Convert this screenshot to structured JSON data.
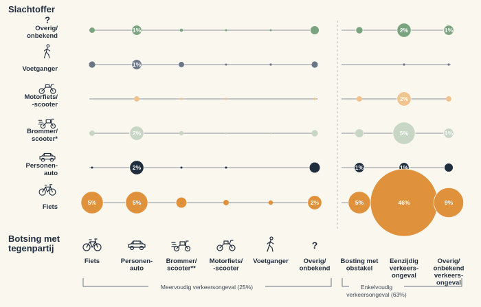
{
  "headings": {
    "victim": "Slachtoffer",
    "opponent_line1": "Botsing met",
    "opponent_line2": "tegenpartij"
  },
  "rows": [
    {
      "lines": [
        "Overig/",
        "onbekend"
      ],
      "icon": "question-mark-icon"
    },
    {
      "lines": [
        "Voetganger"
      ],
      "icon": "pedestrian-icon"
    },
    {
      "lines": [
        "Motorfiets/",
        "-scooter"
      ],
      "icon": "motorcycle-icon"
    },
    {
      "lines": [
        "Brommer/",
        "scooter*"
      ],
      "icon": "moped-icon"
    },
    {
      "lines": [
        "Personen-",
        "auto"
      ],
      "icon": "car-icon"
    },
    {
      "lines": [
        "Fiets"
      ],
      "icon": "bicycle-icon"
    }
  ],
  "columns": [
    {
      "lines": [
        "Fiets"
      ],
      "icon": "bicycle-icon"
    },
    {
      "lines": [
        "Personen-",
        "auto"
      ],
      "icon": "car-icon"
    },
    {
      "lines": [
        "Brommer/",
        "scooter**"
      ],
      "icon": "moped-icon"
    },
    {
      "lines": [
        "Motorfiets/",
        "-scooter"
      ],
      "icon": "motorcycle-icon"
    },
    {
      "lines": [
        "Voetganger"
      ],
      "icon": "pedestrian-icon"
    },
    {
      "lines": [
        "Overig/",
        "onbekend"
      ],
      "icon": "question-mark-icon"
    },
    {
      "lines": [
        "Bosting met",
        "obstakel"
      ],
      "icon": ""
    },
    {
      "lines": [
        "Eenzijdig",
        "verkeers-",
        "ongeval"
      ],
      "icon": ""
    },
    {
      "lines": [
        "Overig/",
        "onbekend",
        "verkeers-",
        "ongeval"
      ],
      "icon": ""
    }
  ],
  "groups": [
    {
      "label": "Meervoudig verkeersongeval (25%)"
    },
    {
      "lines": [
        "Enkelvoudig",
        "verkeersongeval (63%)"
      ]
    }
  ],
  "row_colors": [
    "#7aa37f",
    "#6b7686",
    "#f1c38f",
    "#c7d6c5",
    "#1f2d3d",
    "#e0913b"
  ],
  "line_color": "#8a929c",
  "chart_data": {
    "type": "bubble-matrix",
    "unit": "%",
    "rows": [
      "Overig/onbekend",
      "Voetganger",
      "Motorfiets/-scooter",
      "Brommer/scooter*",
      "Personenauto",
      "Fiets"
    ],
    "columns": [
      "Fiets",
      "Personenauto",
      "Brommer/scooter**",
      "Motorfiets/-scooter",
      "Voetganger",
      "Overig/onbekend",
      "Bosting met obstakel",
      "Eenzijdig verkeersongeval",
      "Overig/onbekend verkeersongeval"
    ],
    "values": [
      [
        0.3,
        1,
        0.1,
        0.03,
        0.03,
        0.8,
        0.5,
        2,
        1
      ],
      [
        0.4,
        1,
        0.3,
        0.03,
        0.05,
        0.4,
        null,
        0.05,
        0.05
      ],
      [
        null,
        0.3,
        0.05,
        0.03,
        null,
        0.05,
        0.3,
        2,
        0.3
      ],
      [
        0.3,
        2,
        0.2,
        0.03,
        0.03,
        0.4,
        0.8,
        5,
        1
      ],
      [
        0.03,
        2,
        0.03,
        0.03,
        null,
        1.2,
        1,
        1,
        0.8
      ],
      [
        5,
        5,
        1.2,
        0.3,
        0.2,
        2,
        5,
        46,
        9
      ]
    ],
    "labels": [
      [
        null,
        "1%",
        null,
        null,
        null,
        null,
        null,
        "2%",
        "1%"
      ],
      [
        null,
        "1%",
        null,
        null,
        null,
        null,
        null,
        null,
        null
      ],
      [
        null,
        null,
        null,
        null,
        null,
        null,
        null,
        "2%",
        null
      ],
      [
        null,
        "2%",
        null,
        null,
        null,
        null,
        null,
        "5%",
        "1%"
      ],
      [
        null,
        "2%",
        null,
        null,
        null,
        null,
        "1%",
        "1%",
        null
      ],
      [
        "5%",
        "5%",
        null,
        null,
        null,
        "2%",
        "5%",
        "46%",
        "9%"
      ]
    ]
  }
}
